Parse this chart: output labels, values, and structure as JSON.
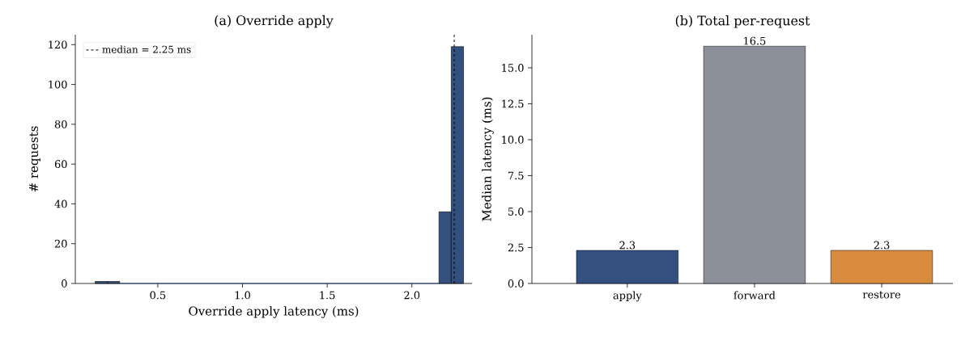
{
  "chart_data": [
    {
      "type": "histogram",
      "title": "(a) Override apply",
      "xlabel": "Override apply latency (ms)",
      "ylabel": "# requests",
      "color": "#34507e",
      "bins": [
        0.13,
        0.2025,
        0.275,
        0.3475,
        0.42,
        0.4925,
        0.565,
        0.6375,
        0.71,
        0.7825,
        0.855,
        0.9275,
        1.0,
        1.0725,
        1.145,
        1.2175,
        1.29,
        1.3625,
        1.435,
        1.5075,
        1.58,
        1.6525,
        1.725,
        1.7975,
        1.87,
        1.9425,
        2.015,
        2.0875,
        2.16,
        2.2325,
        2.305
      ],
      "values": [
        1,
        1,
        0,
        0,
        0,
        0,
        0,
        0,
        0,
        0,
        0,
        0,
        0,
        0,
        0,
        0,
        0,
        0,
        0,
        0,
        0,
        0,
        0,
        0,
        0,
        0,
        0,
        0,
        36,
        119
      ],
      "xlim": [
        0.013,
        2.355
      ],
      "ylim": [
        0,
        125
      ],
      "xticks": [
        0.5,
        {
          "value": 1.0,
          "label": "1.0"
        },
        1.5,
        {
          "value": 2.0,
          "label": "2.0"
        }
      ],
      "yticks": [
        0,
        20,
        40,
        60,
        80,
        100,
        120
      ],
      "ref_lines": [
        {
          "axis": "x",
          "value": 2.25,
          "label": "median = 2.25 ms",
          "line_style": "dashed",
          "color": "#000000"
        }
      ],
      "legend": "top left",
      "grid": false
    },
    {
      "type": "bar",
      "title": "(b) Total per-request",
      "ylabel": "Median latency (ms)",
      "categories": [
        "apply",
        "forward",
        "restore"
      ],
      "values": [
        2.3,
        16.5,
        2.3
      ],
      "colors": [
        "#34507e",
        "#8c909b",
        "#d98b3e"
      ],
      "ylim": [
        0,
        17.3
      ],
      "yticks": [
        {
          "value": 0,
          "label": "0.0"
        },
        2.5,
        {
          "value": 5,
          "label": "5.0"
        },
        7.5,
        {
          "value": 10,
          "label": "10.0"
        },
        12.5,
        {
          "value": 15,
          "label": "15.0"
        }
      ],
      "data_labels": true,
      "grid": false
    }
  ]
}
